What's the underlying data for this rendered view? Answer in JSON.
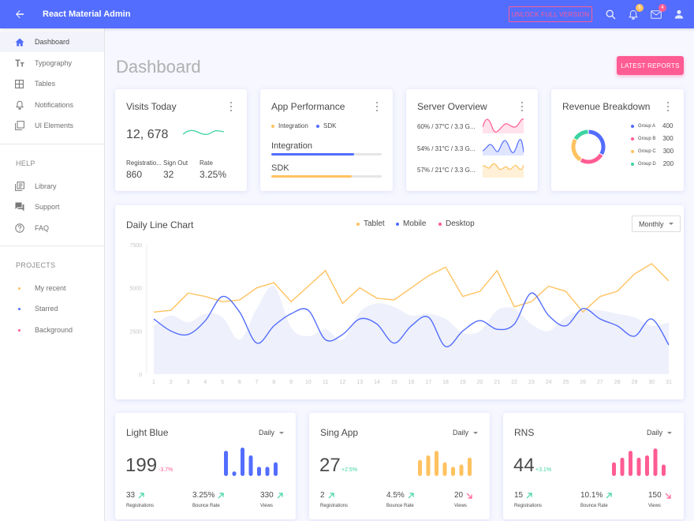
{
  "header": {
    "title": "React Material Admin",
    "unlock_label": "UNLOCK FULL VERSION",
    "notifications_count": "6",
    "messages_count": "4"
  },
  "sidebar": {
    "items": [
      {
        "label": "Dashboard",
        "icon": "home-icon"
      },
      {
        "label": "Typography",
        "icon": "text-format-icon"
      },
      {
        "label": "Tables",
        "icon": "table-icon"
      },
      {
        "label": "Notifications",
        "icon": "bell-icon"
      },
      {
        "label": "UI Elements",
        "icon": "filter-icon"
      }
    ],
    "help_title": "HELP",
    "help_items": [
      {
        "label": "Library",
        "icon": "library-icon"
      },
      {
        "label": "Support",
        "icon": "forum-icon"
      },
      {
        "label": "FAQ",
        "icon": "help-icon"
      }
    ],
    "projects_title": "PROJECTS",
    "projects": [
      {
        "label": "My recent",
        "color": "#ffc260"
      },
      {
        "label": "Starred",
        "color": "#536dfe"
      },
      {
        "label": "Background",
        "color": "#ff5c93"
      }
    ]
  },
  "page": {
    "title": "Dashboard",
    "latest_reports": "LATEST REPORTS"
  },
  "visits": {
    "title": "Visits Today",
    "value": "12, 678",
    "stats": [
      {
        "label": "Registratio...",
        "value": "860"
      },
      {
        "label": "Sign Out",
        "value": "32"
      },
      {
        "label": "Rate",
        "value": "3.25%"
      }
    ]
  },
  "app_perf": {
    "title": "App Performance",
    "legend": [
      {
        "label": "Integration",
        "color": "#ffc260"
      },
      {
        "label": "SDK",
        "color": "#536dfe"
      }
    ],
    "bars": [
      {
        "label": "Integration",
        "value": 0.75,
        "color": "#536dfe"
      },
      {
        "label": "SDK",
        "value": 0.73,
        "color": "#ffc260"
      }
    ]
  },
  "server": {
    "title": "Server Overview",
    "rows": [
      {
        "label": "60% / 37°C / 3.3 G...",
        "color": "#ff5c93"
      },
      {
        "label": "54% / 31°C / 3.3 G...",
        "color": "#536dfe"
      },
      {
        "label": "57% / 21°C / 3.3 G...",
        "color": "#ffc260"
      }
    ]
  },
  "revenue": {
    "title": "Revenue Breakdown",
    "groups": [
      {
        "label": "Group A",
        "value": "400",
        "num": 400,
        "color": "#536dfe"
      },
      {
        "label": "Group B",
        "value": "300",
        "num": 300,
        "color": "#ff5c93"
      },
      {
        "label": "Group C",
        "value": "300",
        "num": 300,
        "color": "#ffc260"
      },
      {
        "label": "Group D",
        "value": "200",
        "num": 200,
        "color": "#3cd4a0"
      }
    ]
  },
  "daily": {
    "title": "Daily Line Chart",
    "legend": [
      {
        "label": "Tablet",
        "color": "#ffc260"
      },
      {
        "label": "Mobile",
        "color": "#536dfe"
      },
      {
        "label": "Desktop",
        "color": "#ff5c93"
      }
    ],
    "period": "Monthly"
  },
  "chart_data": {
    "type": "line",
    "x": [
      1,
      2,
      3,
      4,
      5,
      6,
      7,
      8,
      9,
      10,
      11,
      12,
      13,
      14,
      15,
      16,
      17,
      18,
      19,
      20,
      21,
      22,
      23,
      24,
      25,
      26,
      27,
      28,
      29,
      30,
      31
    ],
    "ylim": [
      0,
      7500
    ],
    "yticks": [
      "0",
      "2500",
      "5000",
      "7500"
    ],
    "series": [
      {
        "name": "Tablet",
        "color": "#ffc260",
        "values": [
          3600,
          3700,
          4700,
          4500,
          4200,
          4300,
          5000,
          5300,
          4200,
          5100,
          6000,
          4100,
          5000,
          4400,
          4300,
          5000,
          5700,
          6200,
          4500,
          4800,
          6000,
          3900,
          4200,
          5100,
          4800,
          3600,
          4500,
          4800,
          5800,
          6400,
          5400
        ]
      },
      {
        "name": "Mobile",
        "color": "#536dfe",
        "values": [
          3200,
          2500,
          2300,
          3100,
          4500,
          3600,
          1800,
          2800,
          3500,
          3700,
          2000,
          2300,
          3200,
          2900,
          1800,
          2800,
          3300,
          1600,
          2500,
          3100,
          2600,
          2900,
          4700,
          3400,
          2800,
          3800,
          3200,
          2800,
          2200,
          3200,
          1700
        ]
      },
      {
        "name": "Desktop",
        "color": "#e8eaf9",
        "values": [
          2800,
          3400,
          3000,
          3500,
          3300,
          2000,
          3800,
          5100,
          2700,
          2200,
          2600,
          2000,
          3600,
          4100,
          3900,
          3400,
          3500,
          3200,
          2400,
          2500,
          3700,
          3800,
          2900,
          2500,
          3300,
          3700,
          3700,
          3500,
          3300,
          2800,
          3000
        ]
      }
    ]
  },
  "apps": [
    {
      "title": "Light Blue",
      "period": "Daily",
      "value": "199",
      "change": "-3.7%",
      "change_color": "#ff5c93",
      "color": "#536dfe",
      "bars": [
        0.55,
        0.1,
        0.62,
        0.45,
        0.2,
        0.2,
        0.3
      ],
      "stats": [
        {
          "value": "33",
          "label": "Registrations",
          "trend": "up"
        },
        {
          "value": "3.25%",
          "label": "Bounce Rate",
          "trend": "up"
        },
        {
          "value": "330",
          "label": "Views",
          "trend": "up"
        }
      ]
    },
    {
      "title": "Sing App",
      "period": "Daily",
      "value": "27",
      "change": "+2.5%",
      "change_color": "#3cd4a0",
      "color": "#ffc260",
      "bars": [
        0.35,
        0.45,
        0.55,
        0.3,
        0.2,
        0.25,
        0.4
      ],
      "stats": [
        {
          "value": "2",
          "label": "Registrations",
          "trend": "up"
        },
        {
          "value": "4.5%",
          "label": "Bounce Rate",
          "trend": "up"
        },
        {
          "value": "20",
          "label": "Views",
          "trend": "down"
        }
      ]
    },
    {
      "title": "RNS",
      "period": "Daily",
      "value": "44",
      "change": "+3.1%",
      "change_color": "#3cd4a0",
      "color": "#ff5c93",
      "bars": [
        0.3,
        0.4,
        0.55,
        0.4,
        0.45,
        0.6,
        0.25
      ],
      "stats": [
        {
          "value": "15",
          "label": "Registrations",
          "trend": "up"
        },
        {
          "value": "10.1%",
          "label": "Bounce Rate",
          "trend": "up"
        },
        {
          "value": "150",
          "label": "Views",
          "trend": "down"
        }
      ]
    }
  ]
}
